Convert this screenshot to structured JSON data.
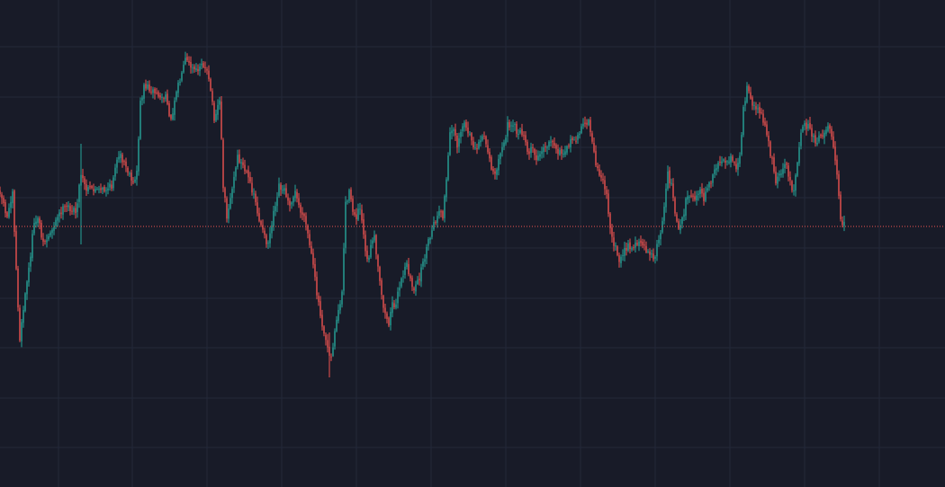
{
  "theme": {
    "background": "#181b28",
    "grid": "#232839",
    "up_color": "#26a69a",
    "down_color": "#ef5350",
    "last_price_line_color": "#ef5350"
  },
  "chart_data": {
    "type": "candlestick",
    "title": "",
    "xlabel": "",
    "ylabel": "",
    "grid": true,
    "legend": "none",
    "ylim": [
      0,
      542
    ],
    "last_price": 252,
    "last_price_line_style": "dotted",
    "bar_count": 470,
    "series": [
      {
        "close_path": [
          [
            0,
            212
          ],
          [
            8,
            242
          ],
          [
            14,
            210
          ],
          [
            18,
            300
          ],
          [
            22,
            380
          ],
          [
            27,
            335
          ],
          [
            32,
            300
          ],
          [
            37,
            255
          ],
          [
            42,
            240
          ],
          [
            48,
            270
          ],
          [
            53,
            265
          ],
          [
            60,
            250
          ],
          [
            68,
            235
          ],
          [
            76,
            230
          ],
          [
            84,
            237
          ],
          [
            90,
            195
          ],
          [
            96,
            212
          ],
          [
            103,
            210
          ],
          [
            110,
            213
          ],
          [
            117,
            211
          ],
          [
            124,
            208
          ],
          [
            128,
            183
          ],
          [
            134,
            175
          ],
          [
            140,
            186
          ],
          [
            145,
            200
          ],
          [
            148,
            206
          ],
          [
            152,
            190
          ],
          [
            156,
            115
          ],
          [
            160,
            95
          ],
          [
            166,
            98
          ],
          [
            172,
            103
          ],
          [
            178,
            108
          ],
          [
            185,
            110
          ],
          [
            190,
            135
          ],
          [
            196,
            98
          ],
          [
            202,
            85
          ],
          [
            206,
            68
          ],
          [
            212,
            75
          ],
          [
            218,
            80
          ],
          [
            224,
            68
          ],
          [
            230,
            82
          ],
          [
            234,
            100
          ],
          [
            238,
            130
          ],
          [
            244,
            110
          ],
          [
            248,
            205
          ],
          [
            252,
            240
          ],
          [
            258,
            210
          ],
          [
            264,
            175
          ],
          [
            270,
            185
          ],
          [
            276,
            200
          ],
          [
            282,
            215
          ],
          [
            288,
            245
          ],
          [
            294,
            265
          ],
          [
            298,
            270
          ],
          [
            304,
            235
          ],
          [
            310,
            205
          ],
          [
            316,
            212
          ],
          [
            322,
            225
          ],
          [
            328,
            215
          ],
          [
            334,
            235
          ],
          [
            340,
            250
          ],
          [
            346,
            285
          ],
          [
            352,
            325
          ],
          [
            358,
            360
          ],
          [
            364,
            385
          ],
          [
            368,
            398
          ],
          [
            372,
            370
          ],
          [
            376,
            345
          ],
          [
            380,
            325
          ],
          [
            384,
            225
          ],
          [
            388,
            215
          ],
          [
            392,
            235
          ],
          [
            396,
            240
          ],
          [
            400,
            228
          ],
          [
            404,
            260
          ],
          [
            408,
            290
          ],
          [
            412,
            275
          ],
          [
            416,
            265
          ],
          [
            420,
            300
          ],
          [
            424,
            330
          ],
          [
            428,
            350
          ],
          [
            432,
            360
          ],
          [
            436,
            340
          ],
          [
            440,
            335
          ],
          [
            444,
            320
          ],
          [
            448,
            305
          ],
          [
            452,
            295
          ],
          [
            456,
            310
          ],
          [
            460,
            325
          ],
          [
            464,
            315
          ],
          [
            468,
            300
          ],
          [
            472,
            285
          ],
          [
            476,
            270
          ],
          [
            480,
            258
          ],
          [
            484,
            245
          ],
          [
            488,
            238
          ],
          [
            492,
            240
          ],
          [
            496,
            200
          ],
          [
            500,
            150
          ],
          [
            504,
            140
          ],
          [
            508,
            160
          ],
          [
            512,
            145
          ],
          [
            516,
            135
          ],
          [
            520,
            150
          ],
          [
            524,
            155
          ],
          [
            528,
            165
          ],
          [
            532,
            160
          ],
          [
            536,
            150
          ],
          [
            540,
            160
          ],
          [
            544,
            180
          ],
          [
            548,
            195
          ],
          [
            552,
            185
          ],
          [
            556,
            175
          ],
          [
            560,
            160
          ],
          [
            564,
            140
          ],
          [
            568,
            135
          ],
          [
            572,
            140
          ],
          [
            576,
            150
          ],
          [
            580,
            148
          ],
          [
            584,
            160
          ],
          [
            588,
            170
          ],
          [
            592,
            165
          ],
          [
            596,
            178
          ],
          [
            600,
            172
          ],
          [
            606,
            165
          ],
          [
            612,
            160
          ],
          [
            618,
            168
          ],
          [
            624,
            172
          ],
          [
            630,
            160
          ],
          [
            636,
            158
          ],
          [
            642,
            150
          ],
          [
            648,
            140
          ],
          [
            654,
            135
          ],
          [
            658,
            155
          ],
          [
            662,
            185
          ],
          [
            666,
            195
          ],
          [
            670,
            200
          ],
          [
            674,
            220
          ],
          [
            678,
            250
          ],
          [
            682,
            270
          ],
          [
            686,
            285
          ],
          [
            690,
            290
          ],
          [
            694,
            280
          ],
          [
            698,
            275
          ],
          [
            702,
            278
          ],
          [
            706,
            272
          ],
          [
            710,
            268
          ],
          [
            714,
            270
          ],
          [
            718,
            278
          ],
          [
            722,
            285
          ],
          [
            726,
            288
          ],
          [
            730,
            275
          ],
          [
            734,
            260
          ],
          [
            738,
            230
          ],
          [
            742,
            195
          ],
          [
            746,
            205
          ],
          [
            750,
            235
          ],
          [
            754,
            255
          ],
          [
            758,
            245
          ],
          [
            762,
            225
          ],
          [
            766,
            220
          ],
          [
            770,
            222
          ],
          [
            774,
            218
          ],
          [
            778,
            215
          ],
          [
            782,
            220
          ],
          [
            786,
            210
          ],
          [
            790,
            200
          ],
          [
            794,
            190
          ],
          [
            798,
            180
          ],
          [
            802,
            178
          ],
          [
            806,
            185
          ],
          [
            810,
            180
          ],
          [
            814,
            176
          ],
          [
            818,
            185
          ],
          [
            822,
            175
          ],
          [
            826,
            120
          ],
          [
            830,
            100
          ],
          [
            834,
            110
          ],
          [
            838,
            118
          ],
          [
            842,
            122
          ],
          [
            846,
            128
          ],
          [
            850,
            138
          ],
          [
            854,
            160
          ],
          [
            858,
            180
          ],
          [
            862,
            200
          ],
          [
            866,
            195
          ],
          [
            870,
            185
          ],
          [
            874,
            182
          ],
          [
            878,
            205
          ],
          [
            882,
            210
          ],
          [
            886,
            185
          ],
          [
            890,
            150
          ],
          [
            894,
            138
          ],
          [
            898,
            142
          ],
          [
            902,
            148
          ],
          [
            906,
            160
          ],
          [
            910,
            155
          ],
          [
            914,
            150
          ],
          [
            918,
            142
          ],
          [
            922,
            140
          ],
          [
            926,
            160
          ],
          [
            930,
            190
          ],
          [
            933,
            235
          ],
          [
            936,
            250
          ],
          [
            940,
            248
          ]
        ]
      }
    ]
  }
}
